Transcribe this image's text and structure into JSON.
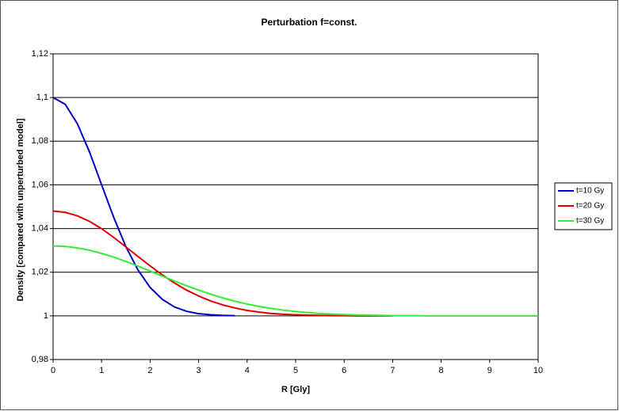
{
  "chart_data": {
    "type": "line",
    "title": "Perturbation f=const.",
    "xlabel": "R [Gly]",
    "ylabel": "Density [compared with unperturbed model]",
    "x": [
      0,
      0.25,
      0.5,
      0.75,
      1,
      1.25,
      1.5,
      1.75,
      2,
      2.25,
      2.5,
      2.75,
      3,
      3.25,
      3.5,
      3.75,
      4,
      4.25,
      4.5,
      4.75,
      5,
      5.25,
      5.5,
      5.75,
      6,
      6.25,
      6.5,
      6.75,
      7,
      7.25,
      7.5,
      7.75,
      8,
      8.25,
      8.5,
      8.75,
      9,
      9.25,
      9.5,
      9.75,
      10
    ],
    "series": [
      {
        "name": "t=10 Gy",
        "color": "#0000cc",
        "values": [
          1.1,
          1.0969,
          1.088,
          1.0751,
          1.06,
          1.0451,
          1.0317,
          1.021,
          1.013,
          1.0076,
          1.0041,
          1.0021,
          1.001,
          1.0005,
          1.0002,
          1.0001,
          null,
          null,
          null,
          null,
          null,
          null,
          null,
          null,
          null,
          null,
          null,
          null,
          null,
          null,
          null,
          null,
          null,
          null,
          null,
          null,
          null,
          null,
          null,
          null,
          null
        ]
      },
      {
        "name": "t=20 Gy",
        "color": "#dd0000",
        "values": [
          1.048,
          1.0474,
          1.0458,
          1.0433,
          1.0399,
          1.0359,
          1.0316,
          1.0272,
          1.0229,
          1.0188,
          1.0151,
          1.0118,
          1.0091,
          1.0068,
          1.005,
          1.0036,
          1.0025,
          1.0017,
          1.0011,
          1.0007,
          1.0005,
          1.0003,
          1.0002,
          1.0001,
          1.0001,
          1,
          1,
          1,
          1,
          null,
          null,
          null,
          null,
          null,
          null,
          null,
          null,
          null,
          null,
          null,
          null
        ]
      },
      {
        "name": "t=30 Gy",
        "color": "#33ee33",
        "values": [
          1.032,
          1.0318,
          1.0311,
          1.0301,
          1.0286,
          1.0269,
          1.0249,
          1.0228,
          1.0205,
          1.0182,
          1.016,
          1.0138,
          1.0118,
          1.0099,
          1.0082,
          1.0067,
          1.0054,
          1.0043,
          1.0034,
          1.0026,
          1.002,
          1.0015,
          1.0011,
          1.0008,
          1.0006,
          1.0004,
          1.0003,
          1.0002,
          1.0001,
          1.0001,
          1.0001,
          1,
          1,
          1,
          1,
          1,
          1,
          1,
          1,
          1,
          1
        ]
      }
    ],
    "xlim": [
      0,
      10
    ],
    "xticks": [
      0,
      1,
      2,
      3,
      4,
      5,
      6,
      7,
      8,
      9,
      10
    ],
    "ylim": [
      0.98,
      1.12
    ],
    "yticks": [
      {
        "value": 0.98,
        "label": "0,98"
      },
      1,
      {
        "value": 1.02,
        "label": "1,02"
      },
      {
        "value": 1.04,
        "label": "1,04"
      },
      {
        "value": 1.06,
        "label": "1,06"
      },
      {
        "value": 1.08,
        "label": "1,08"
      },
      {
        "value": 1.1,
        "label": "1,1"
      },
      {
        "value": 1.12,
        "label": "1,12"
      }
    ],
    "grid": true,
    "legend": "right"
  }
}
